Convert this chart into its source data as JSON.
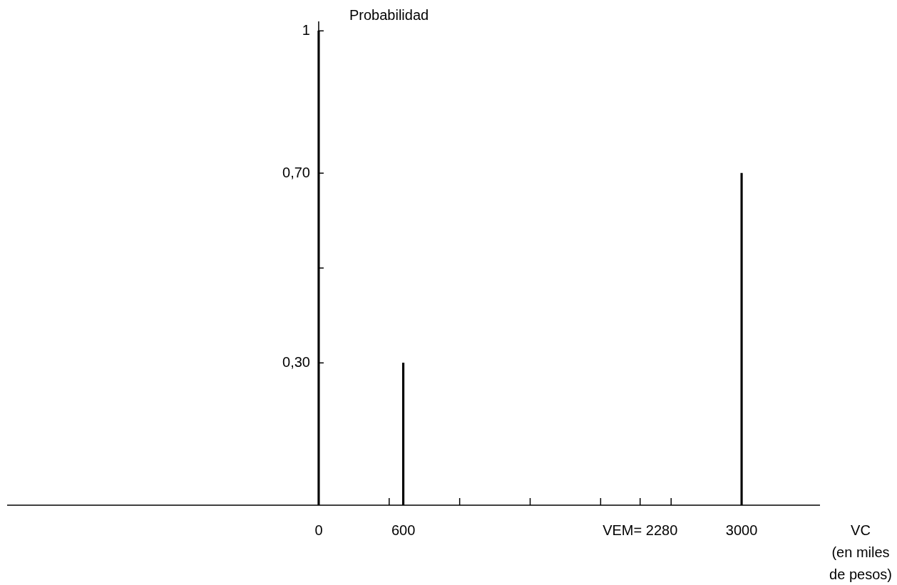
{
  "chart_data": {
    "type": "bar",
    "xlabel": "VC\n(en miles\nde pesos)",
    "ylabel": "Probabilidad",
    "x": [
      0,
      600,
      3000
    ],
    "values": [
      1,
      0.3,
      0.7
    ],
    "color": "#000000",
    "xlim": [
      -2210,
      3556
    ],
    "ylim": [
      0,
      1.02
    ],
    "xticks": [
      0,
      {
        "value": 500,
        "label": null
      },
      600,
      {
        "value": 1000,
        "label": null
      },
      {
        "value": 1500,
        "label": null
      },
      {
        "value": 2000,
        "label": null
      },
      {
        "value": 2280,
        "label": "VEM= 2280"
      },
      {
        "value": 2500,
        "label": null
      },
      3000
    ],
    "yticks": [
      {
        "value": 0.3,
        "label": "0,30"
      },
      {
        "value": 0.5,
        "label": null
      },
      {
        "value": 0.7,
        "label": "0,70"
      },
      1
    ]
  }
}
